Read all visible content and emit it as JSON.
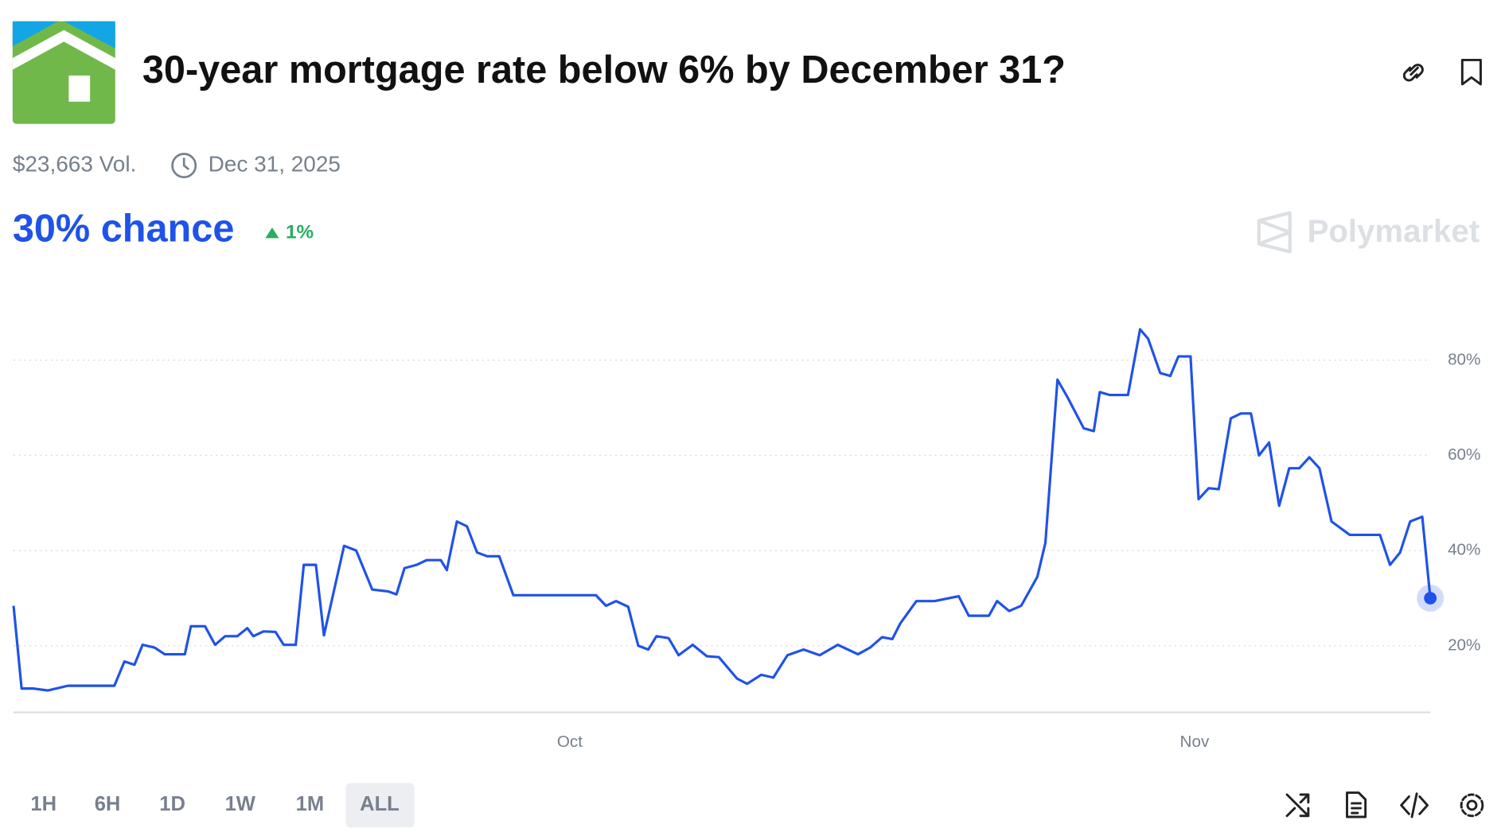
{
  "header": {
    "title": "30-year mortgage rate below 6% by December 31?",
    "volume": "$23,663 Vol.",
    "end_date": "Dec 31, 2025",
    "chance": "30% chance",
    "change": "1%",
    "brand": "Polymarket"
  },
  "range_buttons": [
    "1H",
    "6H",
    "1D",
    "1W",
    "1M",
    "ALL"
  ],
  "chart_data": {
    "type": "line",
    "color": "#1f52e8",
    "grid": true,
    "x": [
      0,
      0.4,
      1.0,
      1.7,
      2.7,
      5.0,
      5.5,
      6.0,
      6.4,
      7.0,
      7.5,
      8.5,
      8.8,
      9.5,
      10.0,
      10.5,
      11.1,
      11.6,
      11.9,
      12.4,
      13.0,
      13.4,
      14.0,
      14.4,
      15.0,
      15.4,
      16.4,
      17.0,
      17.8,
      18.6,
      19.0,
      19.4,
      20.0,
      20.5,
      21.2,
      21.5,
      22.0,
      22.5,
      23.0,
      23.5,
      24.1,
      24.8,
      28.9,
      29.4,
      29.9,
      30.5,
      31.0,
      31.5,
      31.9,
      32.5,
      33.0,
      33.7,
      34.4,
      35.0,
      35.9,
      36.4,
      37.1,
      37.7,
      38.4,
      39.2,
      40.0,
      40.9,
      41.9,
      42.5,
      43.1,
      43.6,
      44.0,
      44.8,
      45.7,
      46.9,
      47.4,
      48.4,
      48.8,
      49.4,
      50.0,
      50.8,
      51.2,
      51.8,
      52.3,
      53.1,
      53.6,
      53.9,
      54.4,
      55.3,
      55.9,
      56.3,
      56.9,
      57.4,
      57.8,
      58.4,
      58.8,
      59.3,
      59.8,
      60.4,
      60.9,
      61.4,
      61.8,
      62.3,
      62.8,
      63.3,
      63.8,
      64.3,
      64.8,
      65.4,
      66.3,
      67.8,
      68.3,
      68.8,
      69.3,
      69.9,
      70.3
    ],
    "values": [
      28.4,
      11,
      11,
      10.6,
      11.6,
      11.6,
      16.7,
      16,
      20.2,
      19.6,
      18.2,
      18.2,
      24.1,
      24.1,
      20.2,
      22,
      22,
      23.7,
      22,
      23,
      22.9,
      20.2,
      20.2,
      37,
      37,
      22.2,
      41,
      40,
      31.8,
      31.4,
      30.8,
      36.3,
      37,
      38,
      38,
      35.9,
      46.1,
      45.1,
      39.6,
      38.8,
      38.8,
      30.6,
      30.6,
      28.4,
      29.4,
      28.2,
      20,
      19.2,
      22,
      21.6,
      18,
      20.2,
      17.8,
      17.6,
      13.1,
      12,
      13.9,
      13.3,
      18,
      19.2,
      18,
      20.2,
      18.2,
      19.6,
      21.8,
      21.4,
      24.7,
      29.4,
      29.4,
      30.4,
      26.3,
      26.3,
      29.4,
      27.3,
      28.4,
      34.5,
      41.6,
      75.9,
      72.2,
      65.7,
      65.1,
      73.3,
      72.7,
      72.7,
      86.5,
      84.5,
      77.3,
      76.7,
      80.8,
      80.8,
      50.8,
      53.1,
      52.9,
      67.8,
      68.8,
      68.8,
      60,
      62.7,
      49.4,
      57.3,
      57.3,
      59.6,
      57.3,
      46.1,
      43.3,
      43.3,
      37,
      39.6,
      46.1,
      47.1,
      30
    ],
    "xlim": [
      0,
      70.3
    ],
    "xticks": [
      {
        "value": 27.6,
        "label": "Oct"
      },
      {
        "value": 58.6,
        "label": "Nov"
      }
    ],
    "ylim": [
      6,
      90
    ],
    "yticks": [
      {
        "value": 20,
        "label": "20%"
      },
      {
        "value": 40,
        "label": "40%"
      },
      {
        "value": 60,
        "label": "60%"
      },
      {
        "value": 80,
        "label": "80%"
      }
    ]
  }
}
